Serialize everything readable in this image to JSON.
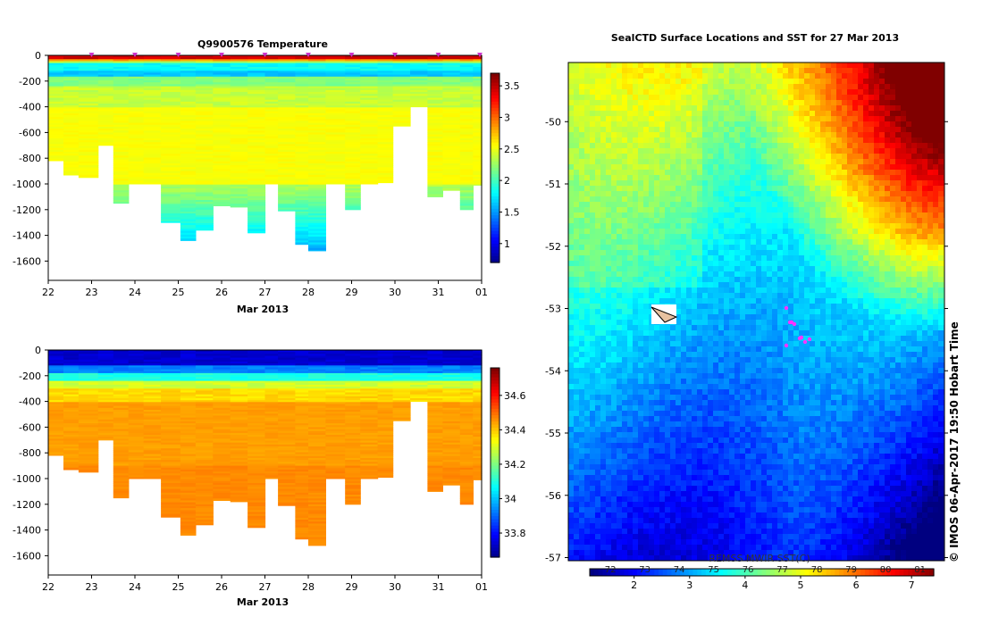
{
  "copyright": "© IMOS 06-Apr-2017 19:50 Hobart Time",
  "chart_data": [
    {
      "type": "heatmap",
      "title": "Q9900576  Temperature",
      "xlabel": "Mar 2013",
      "ylabel": "",
      "x_ticks": [
        "22",
        "23",
        "24",
        "25",
        "26",
        "27",
        "28",
        "29",
        "30",
        "31",
        "01"
      ],
      "y_ticks": [
        "0",
        "-200",
        "-400",
        "-600",
        "-800",
        "-1000",
        "-1200",
        "-1400",
        "-1600"
      ],
      "ylim": [
        -1750,
        0
      ],
      "profile_times": [
        22.0,
        22.35,
        22.7,
        23.15,
        23.5,
        23.85,
        24.2,
        24.6,
        25.05,
        25.4,
        25.8,
        26.2,
        26.6,
        27.0,
        27.3,
        27.7,
        28.0,
        28.4,
        28.85,
        29.2,
        29.6,
        29.95,
        30.35,
        30.75,
        31.1,
        31.5,
        31.8
      ],
      "max_depth": [
        -820,
        -930,
        -950,
        -700,
        -1150,
        -1000,
        -1000,
        -1300,
        -1440,
        -1360,
        -1170,
        -1180,
        -1380,
        -1000,
        -1210,
        -1470,
        -1520,
        -1000,
        -1200,
        -1000,
        -990,
        -550,
        -400,
        -1100,
        -1050,
        -1200,
        -1010
      ],
      "colorbar": {
        "min": 0.7,
        "max": 3.7,
        "ticks": [
          "3.5",
          "3",
          "2.5",
          "2",
          "1.5",
          "1"
        ]
      },
      "markers": {
        "color": "#cc33cc",
        "times": [
          23,
          24,
          25,
          26,
          27,
          28,
          29,
          30,
          31,
          32
        ]
      }
    },
    {
      "type": "heatmap",
      "title": "",
      "xlabel": "Mar 2013",
      "ylabel": "",
      "x_ticks": [
        "22",
        "23",
        "24",
        "25",
        "26",
        "27",
        "28",
        "29",
        "30",
        "31",
        "01"
      ],
      "y_ticks": [
        "0",
        "-200",
        "-400",
        "-600",
        "-800",
        "-1000",
        "-1200",
        "-1400",
        "-1600"
      ],
      "ylim": [
        -1750,
        0
      ],
      "colorbar": {
        "min": 33.66,
        "max": 34.76,
        "ticks": [
          "34.6",
          "34.4",
          "34.2",
          "34",
          "33.8"
        ]
      }
    },
    {
      "type": "heatmap",
      "title": "SealCTD Surface Locations and SST for 27 Mar 2013",
      "xlabel": "",
      "ylabel": "",
      "y_ticks": [
        "-50",
        "-51",
        "-52",
        "-53",
        "-54",
        "-55",
        "-56",
        "-57"
      ],
      "ylim": [
        -57.05,
        -49.05
      ],
      "colorbar_label": "REMSS MWIR SST(C)",
      "colorbar_C_ticks": [
        "2",
        "3",
        "4",
        "5",
        "6",
        "7"
      ],
      "colorbar_F_ticks": [
        "72",
        "73",
        "74",
        "75",
        "76",
        "77",
        "78",
        "79",
        "80",
        "81"
      ],
      "seal_locations": [
        [
          -53.1,
          0
        ],
        [
          -53.2,
          0.1
        ],
        [
          -53.3,
          0.05
        ],
        [
          -53.4,
          0.15
        ],
        [
          -53.45,
          0.25
        ],
        [
          -53.5,
          0.2
        ]
      ]
    }
  ]
}
